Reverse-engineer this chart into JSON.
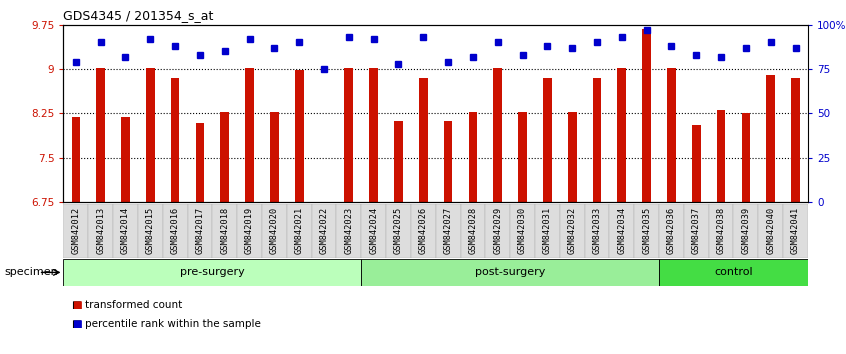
{
  "title": "GDS4345 / 201354_s_at",
  "categories": [
    "GSM842012",
    "GSM842013",
    "GSM842014",
    "GSM842015",
    "GSM842016",
    "GSM842017",
    "GSM842018",
    "GSM842019",
    "GSM842020",
    "GSM842021",
    "GSM842022",
    "GSM842023",
    "GSM842024",
    "GSM842025",
    "GSM842026",
    "GSM842027",
    "GSM842028",
    "GSM842029",
    "GSM842030",
    "GSM842031",
    "GSM842032",
    "GSM842033",
    "GSM842034",
    "GSM842035",
    "GSM842036",
    "GSM842037",
    "GSM842038",
    "GSM842039",
    "GSM842040",
    "GSM842041"
  ],
  "bar_values": [
    8.18,
    9.01,
    8.18,
    9.01,
    8.85,
    8.08,
    8.27,
    9.01,
    8.27,
    8.98,
    6.72,
    9.01,
    9.01,
    8.12,
    8.85,
    8.12,
    8.27,
    9.01,
    8.27,
    8.85,
    8.27,
    8.85,
    9.01,
    9.68,
    9.01,
    8.05,
    8.3,
    8.25,
    8.9,
    8.85
  ],
  "percentile_values": [
    79,
    90,
    82,
    92,
    88,
    83,
    85,
    92,
    87,
    90,
    75,
    93,
    92,
    78,
    93,
    79,
    82,
    90,
    83,
    88,
    87,
    90,
    93,
    97,
    88,
    83,
    82,
    87,
    90,
    87
  ],
  "bar_color": "#cc1100",
  "dot_color": "#0000cc",
  "ylim_left": [
    6.75,
    9.75
  ],
  "ylim_right": [
    0,
    100
  ],
  "yticks_left": [
    6.75,
    7.5,
    8.25,
    9.0,
    9.75
  ],
  "ytick_labels_left": [
    "6.75",
    "7.5",
    "8.25",
    "9",
    "9.75"
  ],
  "yticks_right": [
    0,
    25,
    50,
    75,
    100
  ],
  "ytick_labels_right": [
    "0",
    "25",
    "50",
    "75",
    "100%"
  ],
  "hlines": [
    7.5,
    8.25,
    9.0
  ],
  "groups": [
    {
      "label": "pre-surgery",
      "start": 0,
      "end": 12,
      "color": "#bbffbb"
    },
    {
      "label": "post-surgery",
      "start": 12,
      "end": 24,
      "color": "#99ee99"
    },
    {
      "label": "control",
      "start": 24,
      "end": 30,
      "color": "#44dd44"
    }
  ],
  "specimen_label": "specimen",
  "legend_items": [
    {
      "label": "transformed count",
      "color": "#cc1100"
    },
    {
      "label": "percentile rank within the sample",
      "color": "#0000cc"
    }
  ],
  "background_color": "#ffffff",
  "plot_bg_color": "#ffffff",
  "xtick_bg": "#dddddd"
}
